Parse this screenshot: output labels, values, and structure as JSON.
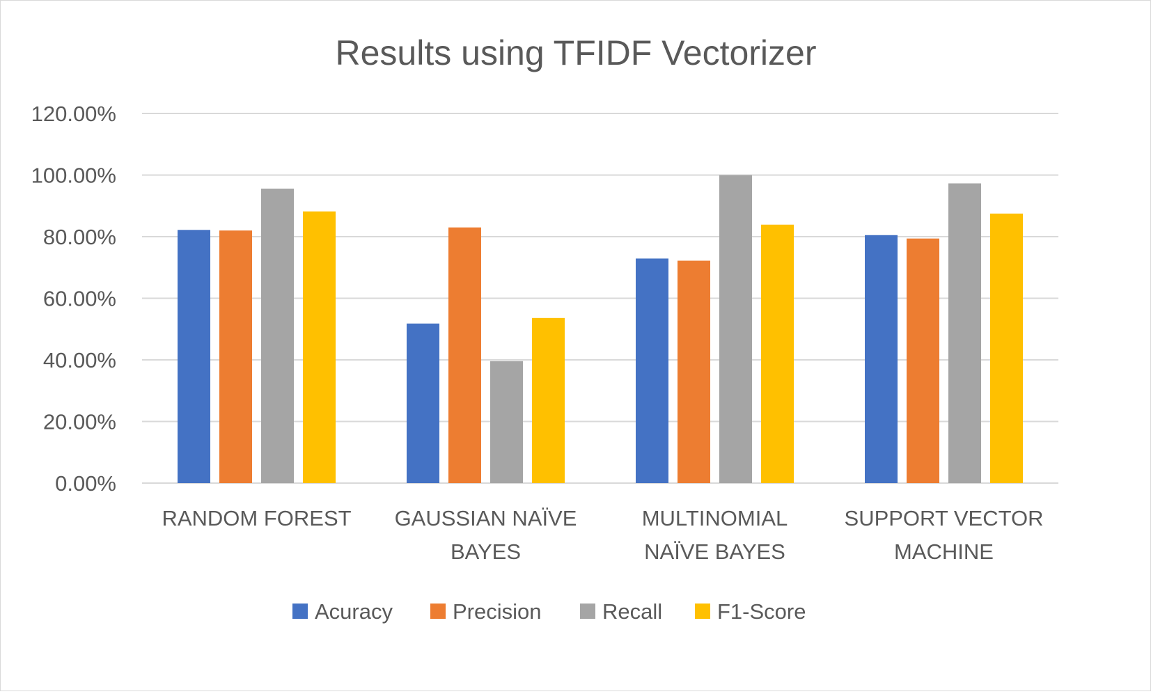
{
  "chart_data": {
    "type": "bar",
    "title": "Results using TFIDF Vectorizer",
    "xlabel": "",
    "ylabel": "",
    "ylim": [
      0,
      1.2
    ],
    "y_tick_labels": [
      "0.00%",
      "20.00%",
      "40.00%",
      "60.00%",
      "80.00%",
      "100.00%",
      "120.00%"
    ],
    "grid": true,
    "legend_position": "bottom",
    "categories": [
      [
        "RANDOM FOREST"
      ],
      [
        "GAUSSIAN NAÏVE",
        "BAYES"
      ],
      [
        "MULTINOMIAL",
        "NAÏVE BAYES"
      ],
      [
        "SUPPORT VECTOR",
        "MACHINE"
      ]
    ],
    "series": [
      {
        "name": "Acuracy",
        "color": "#4472C4",
        "values": [
          0.822,
          0.518,
          0.729,
          0.805
        ]
      },
      {
        "name": "Precision",
        "color": "#ED7D31",
        "values": [
          0.82,
          0.83,
          0.722,
          0.794
        ]
      },
      {
        "name": "Recall",
        "color": "#A5A5A5",
        "values": [
          0.956,
          0.396,
          1.0,
          0.973
        ]
      },
      {
        "name": "F1-Score",
        "color": "#FFC000",
        "values": [
          0.882,
          0.536,
          0.839,
          0.875
        ]
      }
    ],
    "gridline_color": "#d9d9d9",
    "text_color": "#595959"
  }
}
